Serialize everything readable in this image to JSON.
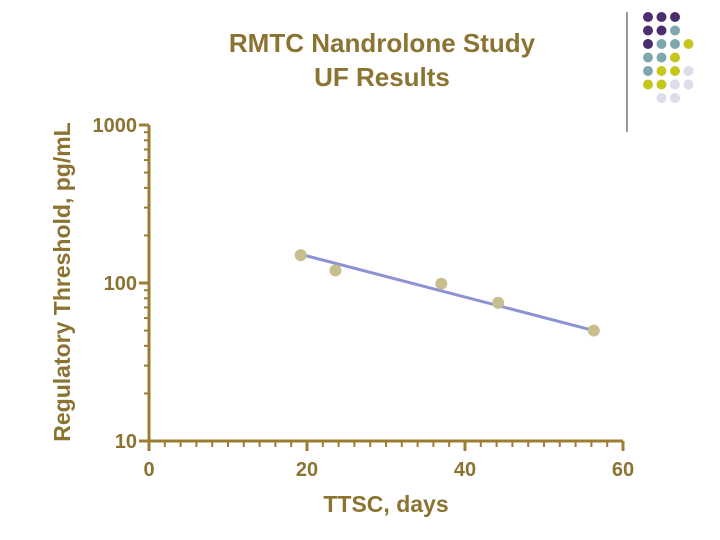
{
  "colors": {
    "text": "#8B7332",
    "axis": "#9C7E33",
    "line": "#8C92D2",
    "point": "#C7BE8E",
    "divider": "#333333",
    "dot_palette": [
      "#4A2E6E",
      "#7FA8AE",
      "#C5C61E",
      "#DCDCEA"
    ]
  },
  "decoration": {
    "dot_grid": [
      [
        "#4A2E6E",
        "#4A2E6E",
        "#4A2E6E",
        null
      ],
      [
        "#4A2E6E",
        "#4A2E6E",
        "#7FA8AE",
        null
      ],
      [
        "#4A2E6E",
        "#7FA8AE",
        "#7FA8AE",
        "#C5C61E"
      ],
      [
        "#7FA8AE",
        "#7FA8AE",
        "#C5C61E",
        null
      ],
      [
        "#7FA8AE",
        "#C5C61E",
        "#C5C61E",
        "#DCDCEA"
      ],
      [
        "#C5C61E",
        "#C5C61E",
        "#DCDCEA",
        "#DCDCEA"
      ],
      [
        null,
        "#DCDCEA",
        "#DCDCEA",
        null
      ]
    ]
  },
  "chart_data": {
    "type": "scatter",
    "title_lines": [
      "RMTC Nandrolone Study",
      "UF Results"
    ],
    "xlabel": "TTSC, days",
    "ylabel": "Regulatory Threshold, pg/mL",
    "xlim": [
      0,
      60
    ],
    "ylim": [
      10,
      1000
    ],
    "yscale": "log",
    "x_ticks": [
      0,
      20,
      40,
      60
    ],
    "x_tick_labels": [
      "0",
      "20",
      "40",
      "60"
    ],
    "y_ticks": [
      10,
      100,
      1000
    ],
    "y_tick_labels": [
      "10",
      "100",
      "1000"
    ],
    "series": [
      {
        "name": "UF Results",
        "x": [
          19.2,
          23.6,
          37.0,
          44.2,
          56.3
        ],
        "y": [
          150,
          120,
          99,
          75,
          50
        ]
      }
    ],
    "fit_line": {
      "x": [
        19.2,
        56.3
      ],
      "y": [
        152,
        50
      ]
    }
  }
}
